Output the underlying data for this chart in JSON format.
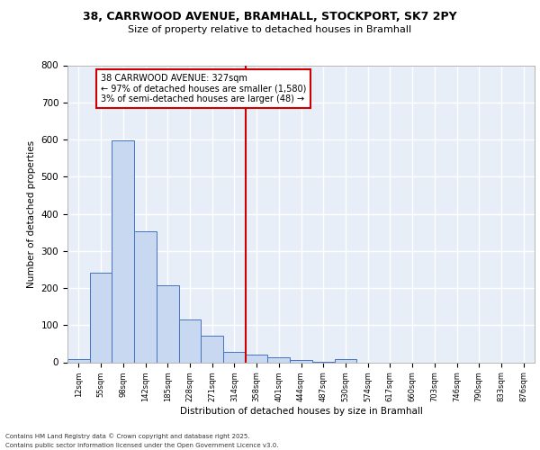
{
  "title_line1": "38, CARRWOOD AVENUE, BRAMHALL, STOCKPORT, SK7 2PY",
  "title_line2": "Size of property relative to detached houses in Bramhall",
  "xlabel": "Distribution of detached houses by size in Bramhall",
  "ylabel": "Number of detached properties",
  "bar_color": "#c8d8f0",
  "bar_edge_color": "#4472c4",
  "background_color": "#e8eef8",
  "grid_color": "#ffffff",
  "categories": [
    "12sqm",
    "55sqm",
    "98sqm",
    "142sqm",
    "185sqm",
    "228sqm",
    "271sqm",
    "314sqm",
    "358sqm",
    "401sqm",
    "444sqm",
    "487sqm",
    "530sqm",
    "574sqm",
    "617sqm",
    "660sqm",
    "703sqm",
    "746sqm",
    "790sqm",
    "833sqm",
    "876sqm"
  ],
  "values": [
    8,
    242,
    598,
    352,
    207,
    116,
    72,
    27,
    20,
    14,
    5,
    2,
    8,
    0,
    0,
    0,
    0,
    0,
    0,
    0,
    0
  ],
  "prop_bar_index": 7,
  "property_label": "38 CARRWOOD AVENUE: 327sqm",
  "property_sublabel1": "← 97% of detached houses are smaller (1,580)",
  "property_sublabel2": "3% of semi-detached houses are larger (48) →",
  "annotation_box_color": "#ffffff",
  "annotation_border_color": "#cc0000",
  "vline_color": "#cc0000",
  "ylim": [
    0,
    800
  ],
  "yticks": [
    0,
    100,
    200,
    300,
    400,
    500,
    600,
    700,
    800
  ],
  "footnote1": "Contains HM Land Registry data © Crown copyright and database right 2025.",
  "footnote2": "Contains public sector information licensed under the Open Government Licence v3.0."
}
